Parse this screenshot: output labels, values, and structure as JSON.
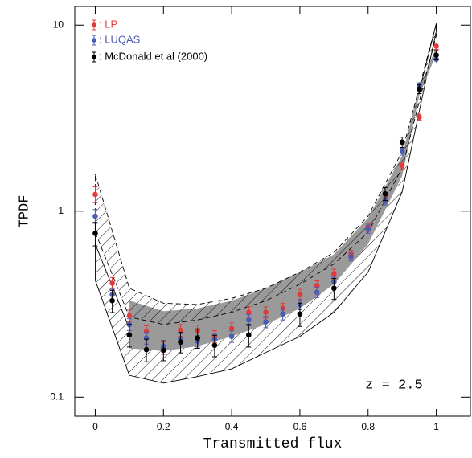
{
  "chart_data": {
    "type": "errorbar",
    "xlabel": "Transmitted flux",
    "ylabel": "TPDF",
    "annotation": "z = 2.5",
    "xlim": [
      -0.06,
      1.1
    ],
    "ylim": [
      0.079,
      12.6
    ],
    "log_y": true,
    "xticks": [
      0,
      0.2,
      0.4,
      0.6,
      0.8,
      1
    ],
    "yticks": [
      0.1,
      1,
      10
    ],
    "legend": "upper left",
    "bands": [
      {
        "style": "hatch-solid",
        "color": "#000000",
        "x": [
          0,
          0.1,
          0.2,
          0.3,
          0.4,
          0.5,
          0.6,
          0.7,
          0.8,
          0.9,
          1
        ],
        "lower": [
          0.425,
          0.131,
          0.119,
          0.129,
          0.142,
          0.174,
          0.212,
          0.286,
          0.47,
          1.27,
          9.3
        ],
        "upper": [
          0.665,
          0.234,
          0.212,
          0.229,
          0.26,
          0.315,
          0.385,
          0.5,
          0.81,
          1.89,
          10.2
        ]
      },
      {
        "style": "fill",
        "color": "#9a9a9a",
        "x": [
          0.1,
          0.2,
          0.3,
          0.4,
          0.5,
          0.6,
          0.7,
          0.8,
          0.9,
          0.95,
          1
        ],
        "lower": [
          0.183,
          0.177,
          0.188,
          0.212,
          0.246,
          0.3,
          0.405,
          0.665,
          1.55,
          4.18,
          7.0
        ],
        "upper": [
          0.331,
          0.29,
          0.3,
          0.33,
          0.385,
          0.47,
          0.585,
          0.92,
          1.99,
          4.6,
          7.6
        ]
      },
      {
        "style": "hatch-dashed",
        "color": "#000000",
        "x": [
          0,
          0.1,
          0.2,
          0.3,
          0.4,
          0.5,
          0.6,
          0.7,
          0.8,
          0.9,
          1
        ],
        "lower": [
          0.77,
          0.27,
          0.246,
          0.26,
          0.286,
          0.33,
          0.405,
          0.52,
          0.77,
          1.71,
          8.8
        ],
        "upper": [
          1.58,
          0.385,
          0.32,
          0.315,
          0.34,
          0.385,
          0.47,
          0.6,
          0.94,
          2.09,
          10.2
        ]
      }
    ],
    "series": [
      {
        "name": ": LP",
        "color": "#e23a3a",
        "x": [
          0,
          0.05,
          0.1,
          0.15,
          0.2,
          0.25,
          0.3,
          0.35,
          0.4,
          0.45,
          0.5,
          0.55,
          0.6,
          0.65,
          0.7,
          0.75,
          0.8,
          0.85,
          0.9,
          0.95,
          1
        ],
        "values": [
          1.23,
          0.41,
          0.274,
          0.225,
          0.184,
          0.229,
          0.227,
          0.212,
          0.234,
          0.286,
          0.286,
          0.3,
          0.356,
          0.397,
          0.46,
          0.585,
          0.82,
          1.15,
          1.76,
          3.2,
          7.7
        ],
        "errors": [
          0.12,
          0.03,
          0.02,
          0.017,
          0.014,
          0.017,
          0.017,
          0.016,
          0.017,
          0.02,
          0.02,
          0.02,
          0.024,
          0.025,
          0.028,
          0.03,
          0.04,
          0.05,
          0.08,
          0.12,
          0.3
        ]
      },
      {
        "name": ": LUQAS",
        "color": "#4a5cb4",
        "x": [
          0,
          0.05,
          0.1,
          0.15,
          0.2,
          0.25,
          0.3,
          0.35,
          0.4,
          0.45,
          0.5,
          0.55,
          0.6,
          0.65,
          0.7,
          0.75,
          0.8,
          0.85,
          0.9,
          0.95,
          1
        ],
        "values": [
          0.94,
          0.356,
          0.246,
          0.208,
          0.188,
          0.206,
          0.2,
          0.204,
          0.212,
          0.26,
          0.254,
          0.28,
          0.315,
          0.366,
          0.417,
          0.57,
          0.8,
          1.13,
          2.09,
          4.72,
          6.55
        ],
        "errors": [
          0.08,
          0.025,
          0.018,
          0.015,
          0.013,
          0.014,
          0.014,
          0.014,
          0.015,
          0.018,
          0.018,
          0.02,
          0.02,
          0.023,
          0.025,
          0.03,
          0.04,
          0.05,
          0.09,
          0.18,
          0.3
        ]
      },
      {
        "name": ": McDonald et al (2000)",
        "color": "#000000",
        "x": [
          0,
          0.05,
          0.1,
          0.15,
          0.2,
          0.25,
          0.3,
          0.35,
          0.45,
          0.6,
          0.7,
          0.85,
          0.9,
          0.95,
          1
        ],
        "values": [
          0.76,
          0.33,
          0.216,
          0.18,
          0.179,
          0.198,
          0.208,
          0.19,
          0.216,
          0.28,
          0.385,
          1.24,
          2.35,
          4.53,
          6.9
        ],
        "errors": [
          0.11,
          0.045,
          0.03,
          0.025,
          0.022,
          0.025,
          0.025,
          0.025,
          0.03,
          0.04,
          0.05,
          0.1,
          0.15,
          0.25,
          0.4
        ]
      }
    ]
  }
}
